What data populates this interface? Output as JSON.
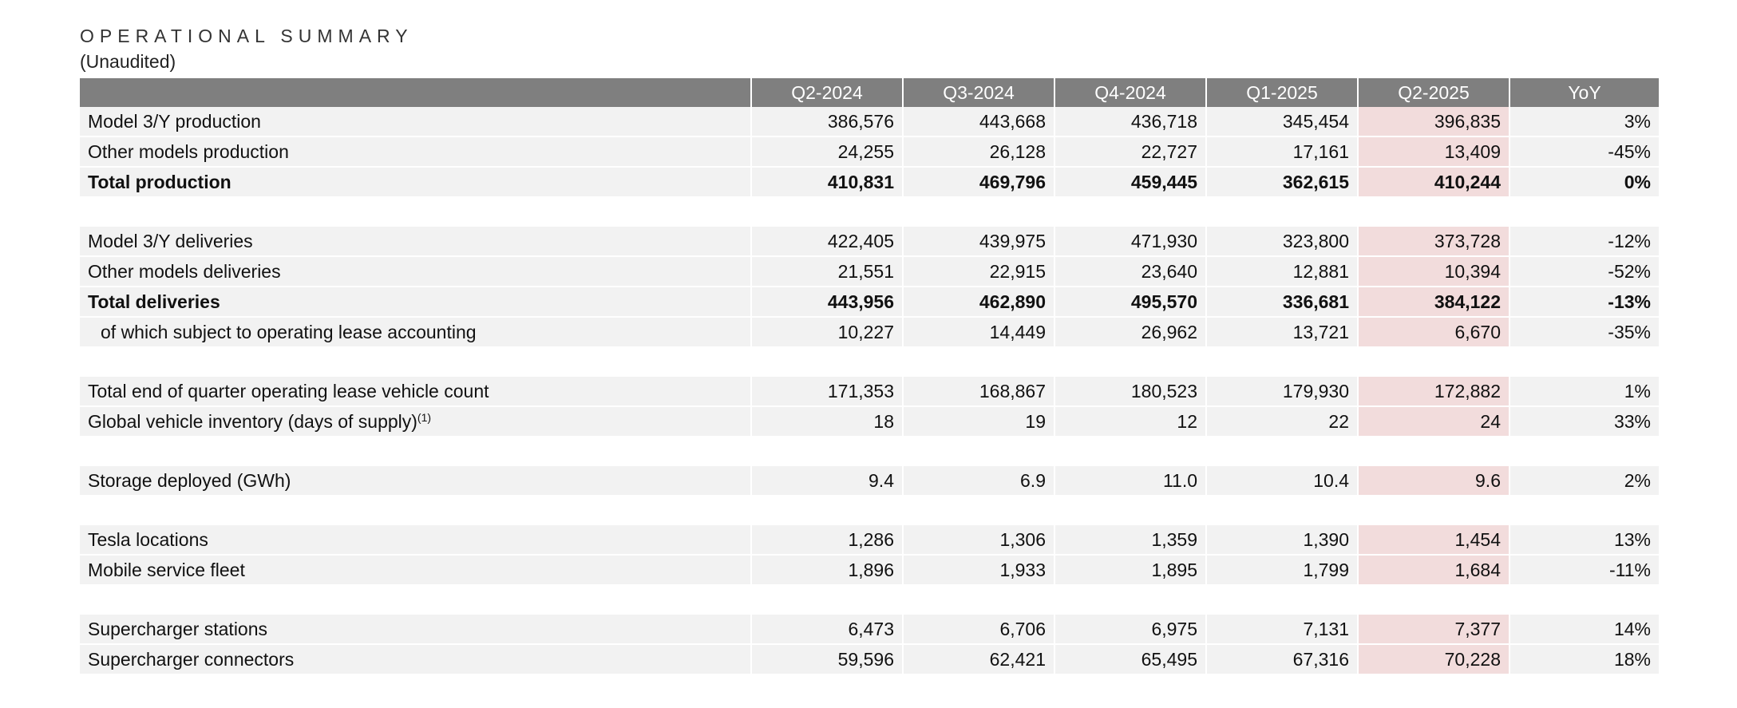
{
  "title": "OPERATIONAL SUMMARY",
  "subtitle": "(Unaudited)",
  "columns": [
    "",
    "Q2-2024",
    "Q3-2024",
    "Q4-2024",
    "Q1-2025",
    "Q2-2025",
    "YoY"
  ],
  "highlight_color": "#f2dcdc",
  "header_color": "#7f7f7f",
  "rows": [
    {
      "label": "Model 3/Y production",
      "values": [
        "386,576",
        "443,668",
        "436,718",
        "345,454",
        "396,835",
        "3%"
      ]
    },
    {
      "label": "Other models production",
      "values": [
        "24,255",
        "26,128",
        "22,727",
        "17,161",
        "13,409",
        "-45%"
      ]
    },
    {
      "label": "Total production",
      "values": [
        "410,831",
        "469,796",
        "459,445",
        "362,615",
        "410,244",
        "0%"
      ]
    },
    {
      "label": "Model 3/Y deliveries",
      "values": [
        "422,405",
        "439,975",
        "471,930",
        "323,800",
        "373,728",
        "-12%"
      ]
    },
    {
      "label": "Other models deliveries",
      "values": [
        "21,551",
        "22,915",
        "23,640",
        "12,881",
        "10,394",
        "-52%"
      ]
    },
    {
      "label": "Total deliveries",
      "values": [
        "443,956",
        "462,890",
        "495,570",
        "336,681",
        "384,122",
        "-13%"
      ]
    },
    {
      "label": "of which subject to operating lease accounting",
      "values": [
        "10,227",
        "14,449",
        "26,962",
        "13,721",
        "6,670",
        "-35%"
      ]
    },
    {
      "label": "Total end of quarter operating lease vehicle count",
      "values": [
        "171,353",
        "168,867",
        "180,523",
        "179,930",
        "172,882",
        "1%"
      ]
    },
    {
      "label": "Global vehicle inventory (days of supply)",
      "footnote": "(1)",
      "values": [
        "18",
        "19",
        "12",
        "22",
        "24",
        "33%"
      ]
    },
    {
      "label": "Storage deployed (GWh)",
      "values": [
        "9.4",
        "6.9",
        "11.0",
        "10.4",
        "9.6",
        "2%"
      ]
    },
    {
      "label": "Tesla locations",
      "values": [
        "1,286",
        "1,306",
        "1,359",
        "1,390",
        "1,454",
        "13%"
      ]
    },
    {
      "label": "Mobile service fleet",
      "values": [
        "1,896",
        "1,933",
        "1,895",
        "1,799",
        "1,684",
        "-11%"
      ]
    },
    {
      "label": "Supercharger stations",
      "values": [
        "6,473",
        "6,706",
        "6,975",
        "7,131",
        "7,377",
        "14%"
      ]
    },
    {
      "label": "Supercharger connectors",
      "values": [
        "59,596",
        "62,421",
        "65,495",
        "67,316",
        "70,228",
        "18%"
      ]
    }
  ]
}
